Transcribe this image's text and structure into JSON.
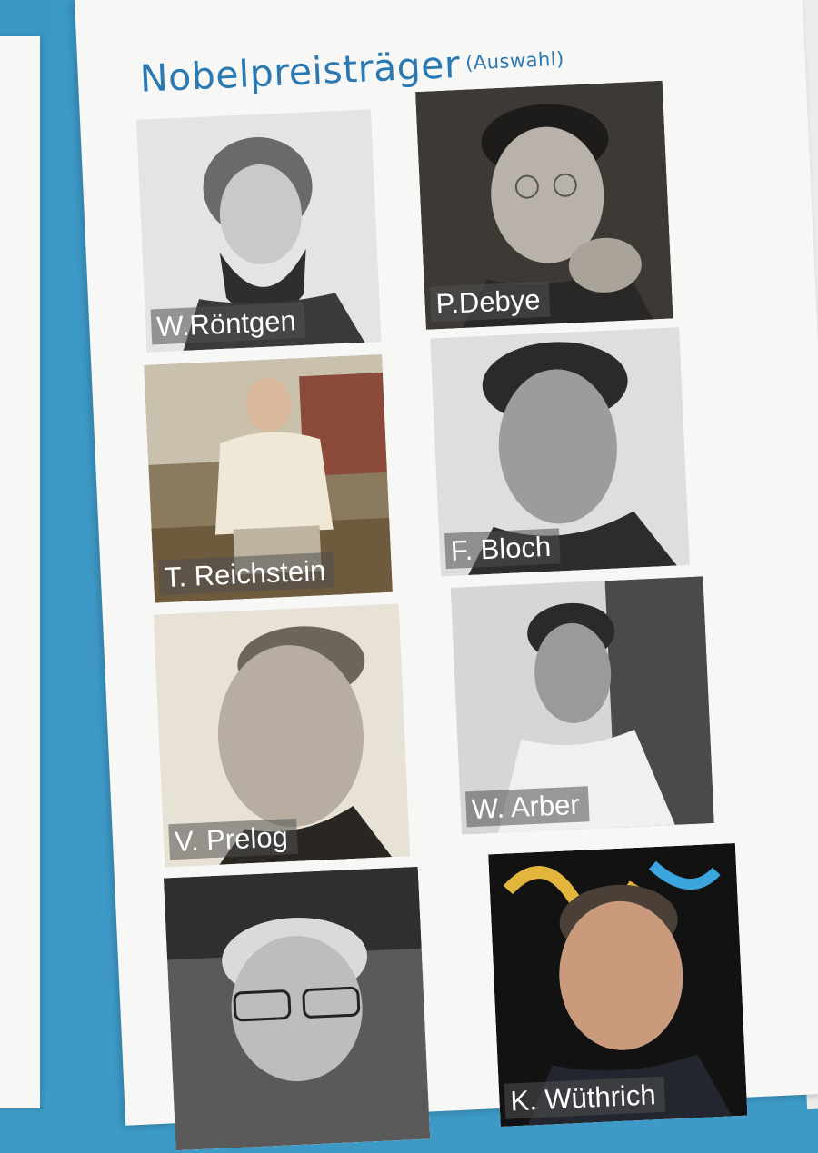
{
  "poster": {
    "title": "Nobelpreisträger",
    "subtitle": "(Auswahl)"
  },
  "laureates": [
    {
      "name": "W.Röntgen",
      "photo": "bw"
    },
    {
      "name": "P.Debye",
      "photo": "sepia"
    },
    {
      "name": "T. Reichstein",
      "photo": "color"
    },
    {
      "name": "F. Bloch",
      "photo": "bw"
    },
    {
      "name": "V. Prelog",
      "photo": "sepia"
    },
    {
      "name": "W. Arber",
      "photo": "bw"
    },
    {
      "name": "",
      "photo": "bw"
    },
    {
      "name": "K. Wüthrich",
      "photo": "color"
    }
  ],
  "colors": {
    "backdrop": "#3d9ac6",
    "poster": "#f7f7f5",
    "title": "#2a79b3"
  }
}
